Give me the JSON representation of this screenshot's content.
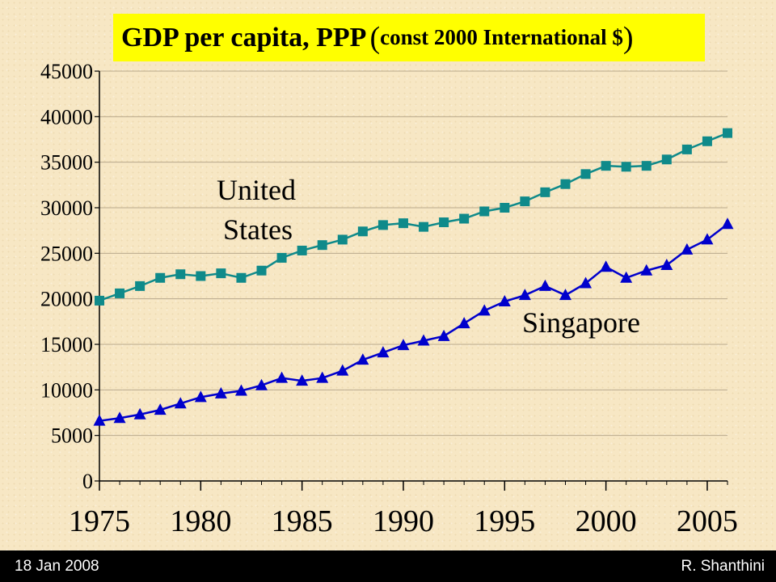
{
  "footer": {
    "date": "18 Jan 2008",
    "author": "R. Shanthini"
  },
  "colors": {
    "united_states": "#0f8a8a",
    "singapore": "#0000cc",
    "title_bg": "#ffff00",
    "footer_bg": "#000000"
  },
  "chart_data": {
    "type": "line",
    "title": "GDP per capita, PPP",
    "title_paren_open": "(",
    "title_sub": "const 2000 International $",
    "title_paren_close": ")",
    "xlabel": "",
    "ylabel": "",
    "xlim": [
      1975,
      2006
    ],
    "ylim": [
      0,
      45000
    ],
    "grid": true,
    "x_ticks": [
      1975,
      1980,
      1985,
      1990,
      1995,
      2000,
      2005
    ],
    "y_ticks": [
      0,
      5000,
      10000,
      15000,
      20000,
      25000,
      30000,
      35000,
      40000,
      45000
    ],
    "x": [
      1975,
      1976,
      1977,
      1978,
      1979,
      1980,
      1981,
      1982,
      1983,
      1984,
      1985,
      1986,
      1987,
      1988,
      1989,
      1990,
      1991,
      1992,
      1993,
      1994,
      1995,
      1996,
      1997,
      1998,
      1999,
      2000,
      2001,
      2002,
      2003,
      2004,
      2005,
      2006
    ],
    "series": [
      {
        "name": "United States",
        "name_lines": [
          "United",
          "States"
        ],
        "marker": "square",
        "color": "#0f8a8a",
        "values": [
          19800,
          20600,
          21400,
          22300,
          22700,
          22500,
          22800,
          22300,
          23100,
          24500,
          25300,
          25900,
          26500,
          27400,
          28100,
          28300,
          27900,
          28400,
          28800,
          29600,
          30000,
          30700,
          31700,
          32600,
          33700,
          34600,
          34500,
          34600,
          35300,
          36400,
          37300,
          38200
        ]
      },
      {
        "name": "Singapore",
        "name_lines": [
          "Singapore"
        ],
        "marker": "triangle",
        "color": "#0000cc",
        "values": [
          6600,
          6900,
          7300,
          7800,
          8500,
          9200,
          9600,
          9900,
          10500,
          11300,
          11000,
          11300,
          12100,
          13300,
          14100,
          14900,
          15400,
          15900,
          17300,
          18700,
          19700,
          20400,
          21400,
          20400,
          21700,
          23500,
          22300,
          23100,
          23700,
          25400,
          26500,
          28200
        ]
      }
    ]
  }
}
